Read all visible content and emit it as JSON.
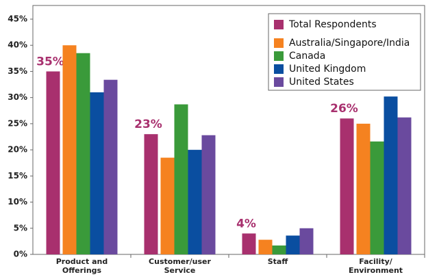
{
  "chart_data": {
    "type": "bar",
    "categories": [
      "Product and Offerings",
      "Customer/user Service",
      "Staff",
      "Facility/ Environment"
    ],
    "series": [
      {
        "name": "Total Respondents",
        "color": "#a8306e",
        "values": [
          35,
          23,
          4,
          26
        ],
        "value_labels": [
          "35%",
          "23%",
          "4%",
          "26%"
        ]
      },
      {
        "name": "Australia/Singapore/India",
        "color": "#f58220",
        "values": [
          40,
          18.5,
          2.8,
          25
        ]
      },
      {
        "name": "Canada",
        "color": "#3a9a3a",
        "values": [
          38.5,
          28.7,
          1.7,
          21.6
        ]
      },
      {
        "name": "United Kingdom",
        "color": "#0a4ea0",
        "values": [
          31,
          20,
          3.6,
          30.2
        ]
      },
      {
        "name": "United States",
        "color": "#6a4a9e",
        "values": [
          33.4,
          22.8,
          5,
          26.2
        ]
      }
    ],
    "ylim": [
      0,
      45
    ],
    "yticks": [
      {
        "value": 0,
        "label": "0%"
      },
      {
        "value": 5,
        "label": "5%"
      },
      {
        "value": 10,
        "label": "10%"
      },
      {
        "value": 15,
        "label": "15%"
      },
      {
        "value": 20,
        "label": "20%"
      },
      {
        "value": 25,
        "label": "25%"
      },
      {
        "value": 30,
        "label": "30%"
      },
      {
        "value": 35,
        "label": "35%"
      },
      {
        "value": 40,
        "label": "40%"
      },
      {
        "value": 45,
        "label": "45%"
      }
    ],
    "legend": "upper right",
    "grid": false
  }
}
